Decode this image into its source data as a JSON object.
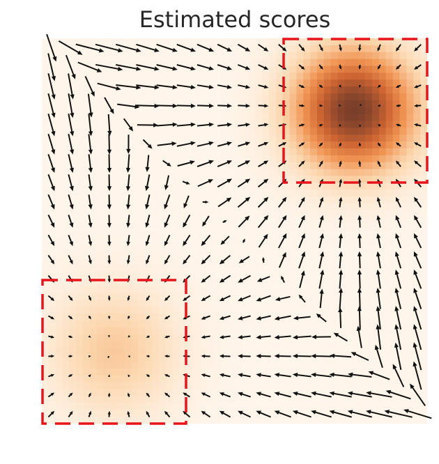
{
  "chart_data": {
    "type": "quiver",
    "title": "Estimated scores"
  }
}
